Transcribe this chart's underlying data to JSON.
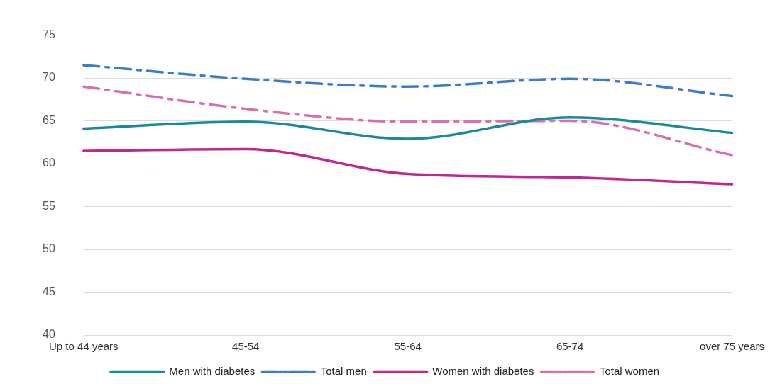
{
  "chart_data": {
    "type": "line",
    "categories": [
      "Up to 44 years",
      "45-54",
      "55-64",
      "65-74",
      "over 75 years"
    ],
    "series": [
      {
        "name": "Men with diabetes",
        "color": "#1a8a9a",
        "values": [
          64.1,
          64.9,
          62.9,
          65.4,
          63.6
        ],
        "line_style": "solid"
      },
      {
        "name": "Total men",
        "color": "#3a7dc9",
        "values": [
          71.5,
          69.9,
          69.0,
          69.9,
          67.9
        ],
        "line_style": "dashed"
      },
      {
        "name": "Women with diabetes",
        "color": "#c0288f",
        "values": [
          61.5,
          61.7,
          58.8,
          58.4,
          57.6
        ],
        "line_style": "solid"
      },
      {
        "name": "Total women",
        "color": "#d870b0",
        "values": [
          69.0,
          66.4,
          64.9,
          65.0,
          61.0
        ],
        "line_style": "dashed"
      }
    ],
    "ylim": [
      40,
      75
    ],
    "yticks": [
      40,
      45,
      50,
      55,
      60,
      65,
      70,
      75
    ],
    "grid": "y",
    "legend": "bottom",
    "marker": "none"
  }
}
